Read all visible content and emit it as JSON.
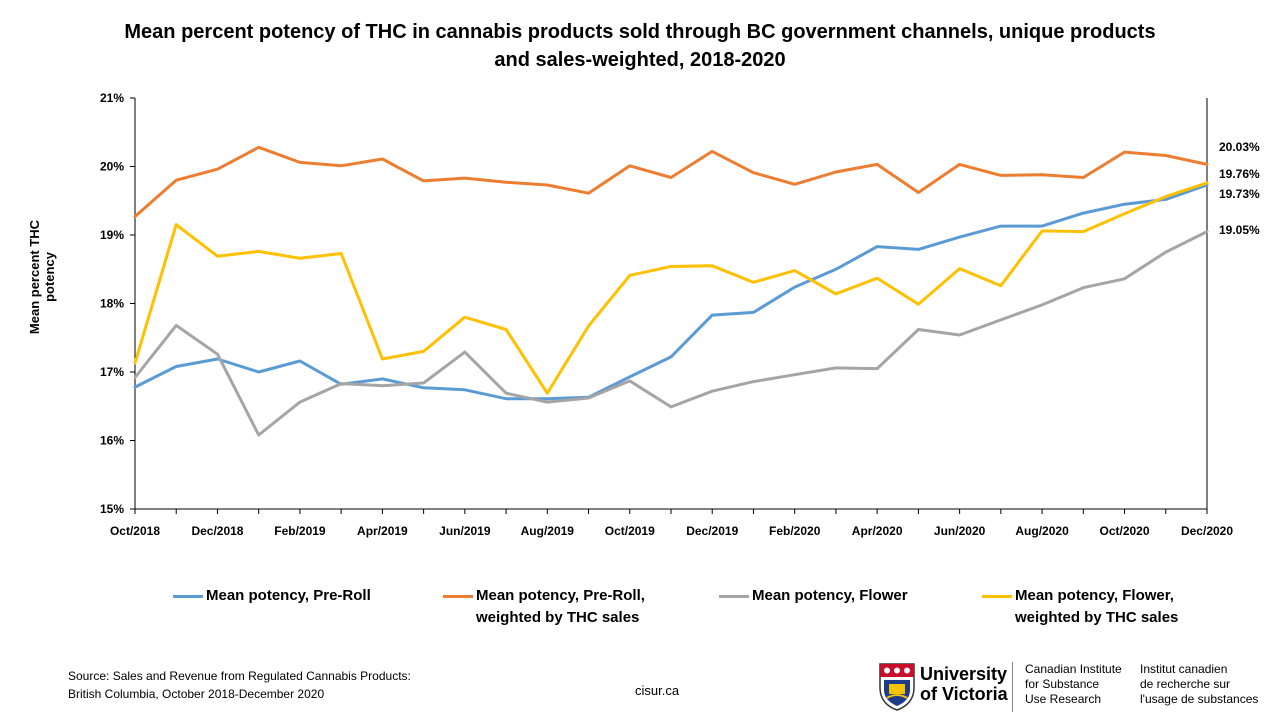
{
  "chart_data": {
    "type": "line",
    "title": "Mean percent potency of THC in cannabis products sold through BC government channels, unique products and sales-weighted, 2018-2020",
    "xlabel": "",
    "ylabel": "Mean percent THC potency",
    "ylim": [
      15,
      21
    ],
    "yticks": [
      "15%",
      "16%",
      "17%",
      "18%",
      "19%",
      "20%",
      "21%"
    ],
    "yticks_values": [
      15,
      16,
      17,
      18,
      19,
      20,
      21
    ],
    "grid": false,
    "legend_position": "bottom",
    "x": [
      "Oct/2018",
      "Nov/2018",
      "Dec/2018",
      "Jan/2019",
      "Feb/2019",
      "Mar/2019",
      "Apr/2019",
      "May/2019",
      "Jun/2019",
      "Jul/2019",
      "Aug/2019",
      "Sep/2019",
      "Oct/2019",
      "Nov/2019",
      "Dec/2019",
      "Jan/2020",
      "Feb/2020",
      "Mar/2020",
      "Apr/2020",
      "May/2020",
      "Jun/2020",
      "Jul/2020",
      "Aug/2020",
      "Sep/2020",
      "Oct/2020",
      "Nov/2020",
      "Dec/2020"
    ],
    "xtick_labels": [
      "Oct/2018",
      "Dec/2018",
      "Feb/2019",
      "Apr/2019",
      "Jun/2019",
      "Aug/2019",
      "Oct/2019",
      "Dec/2019",
      "Feb/2020",
      "Apr/2020",
      "Jun/2020",
      "Aug/2020",
      "Oct/2020",
      "Dec/2020"
    ],
    "series": [
      {
        "name": "Mean potency, Pre-Roll",
        "color": "#5B9BD5",
        "values": [
          16.78,
          17.08,
          17.19,
          17.0,
          17.16,
          16.82,
          16.9,
          16.77,
          16.74,
          16.61,
          16.61,
          16.63,
          16.93,
          17.22,
          17.83,
          17.87,
          18.24,
          18.5,
          18.83,
          18.79,
          18.97,
          19.13,
          19.13,
          19.32,
          19.45,
          19.52,
          19.73
        ],
        "end_label": "19.73%"
      },
      {
        "name": "Mean potency, Pre-Roll, weighted by THC sales",
        "color": "#ED7D31",
        "values": [
          19.27,
          19.8,
          19.96,
          20.28,
          20.06,
          20.01,
          20.11,
          19.79,
          19.83,
          19.77,
          19.73,
          19.61,
          20.01,
          19.84,
          20.22,
          19.91,
          19.74,
          19.92,
          20.03,
          19.62,
          20.03,
          19.87,
          19.88,
          19.84,
          20.21,
          20.16,
          20.03
        ],
        "end_label": "20.03%"
      },
      {
        "name": "Mean potency, Flower",
        "color": "#A5A5A5",
        "values": [
          16.92,
          17.68,
          17.26,
          16.08,
          16.56,
          16.83,
          16.8,
          16.84,
          17.29,
          16.69,
          16.56,
          16.62,
          16.87,
          16.49,
          16.72,
          16.86,
          16.96,
          17.06,
          17.05,
          17.62,
          17.54,
          17.76,
          17.98,
          18.23,
          18.36,
          18.75,
          19.05
        ],
        "end_label": "19.05%"
      },
      {
        "name": "Mean potency, Flower, weighted by THC sales",
        "color": "#FFC000",
        "values": [
          17.13,
          19.15,
          18.69,
          18.76,
          18.66,
          18.73,
          17.19,
          17.3,
          17.8,
          17.62,
          16.69,
          17.67,
          18.41,
          18.54,
          18.55,
          18.31,
          18.48,
          18.14,
          18.37,
          17.99,
          18.51,
          18.26,
          19.06,
          19.05,
          19.31,
          19.56,
          19.76
        ],
        "end_label": "19.76%"
      }
    ]
  },
  "legend": [
    {
      "label": "Mean potency, Pre-Roll",
      "color": "#5B9BD5"
    },
    {
      "label": "Mean potency, Pre-Roll, weighted by THC sales",
      "color": "#ED7D31"
    },
    {
      "label": "Mean potency, Flower",
      "color": "#A5A5A5"
    },
    {
      "label": "Mean potency, Flower, weighted by THC sales",
      "color": "#FFC000"
    }
  ],
  "footer": {
    "source_line1": "Source: Sales and Revenue from Regulated Cannabis Products:",
    "source_line2": "British Columbia, October 2018-December 2020",
    "website": "cisur.ca",
    "uvic_line1": "University",
    "uvic_line2": "of Victoria",
    "cisur_en_1": "Canadian Institute",
    "cisur_en_2": "for Substance",
    "cisur_en_3": "Use Research",
    "cisur_fr_1": "Institut canadien",
    "cisur_fr_2": "de recherche sur",
    "cisur_fr_3": "l'usage de substances"
  }
}
